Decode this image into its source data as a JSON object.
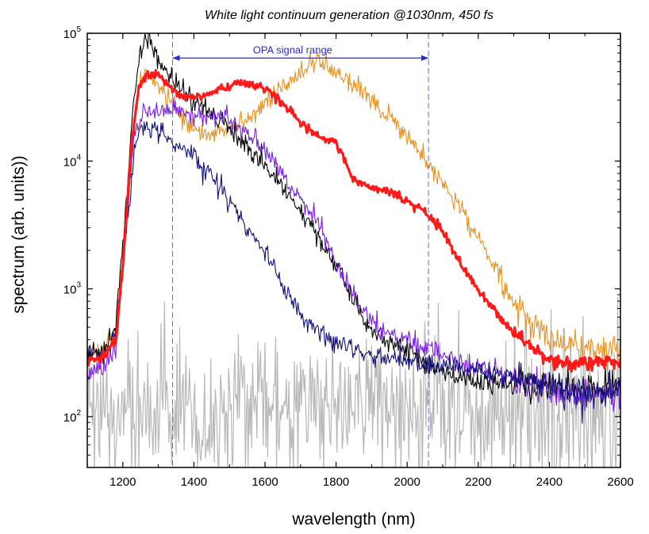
{
  "chart_data": {
    "type": "line",
    "title": "White light continuum generation @1030nm, 450 fs",
    "xlabel": "wavelength (nm)",
    "ylabel": "spectrum (arb. units))",
    "xlim": [
      1100,
      2600
    ],
    "ylim": [
      40,
      100000
    ],
    "yscale": "log",
    "x_ticks": [
      1200,
      1400,
      1600,
      1800,
      2000,
      2200,
      2400,
      2600
    ],
    "x_tick_labels": [
      "1200",
      "1400",
      "1600",
      "1800",
      "2000",
      "2200",
      "2400",
      "2600"
    ],
    "y_ticks": [
      {
        "value": 100,
        "base": "10",
        "exp": "2"
      },
      {
        "value": 1000,
        "base": "10",
        "exp": "3"
      },
      {
        "value": 10000,
        "base": "10",
        "exp": "4"
      },
      {
        "value": 100000,
        "base": "10",
        "exp": "5"
      }
    ],
    "grid": false,
    "annotation": {
      "label": "OPA signal range",
      "x_start": 1340,
      "x_end": 2060,
      "arrow_y": 64000,
      "color": "#2a2ad6"
    },
    "series": [
      {
        "name": "gray baseline",
        "color": "#b8b8b8",
        "width": 1.2,
        "noise": 0.55,
        "seed": 1,
        "points": [
          [
            1100,
            110
          ],
          [
            1200,
            118
          ],
          [
            1400,
            115
          ],
          [
            1600,
            120
          ],
          [
            1800,
            118
          ],
          [
            2000,
            114
          ],
          [
            2200,
            108
          ],
          [
            2400,
            106
          ],
          [
            2600,
            102
          ]
        ]
      },
      {
        "name": "orange",
        "color": "#e8921e",
        "width": 1.1,
        "noise": 0.08,
        "seed": 2,
        "points": [
          [
            1100,
            320
          ],
          [
            1150,
            330
          ],
          [
            1180,
            450
          ],
          [
            1210,
            3000
          ],
          [
            1230,
            18000
          ],
          [
            1245,
            42000
          ],
          [
            1270,
            48000
          ],
          [
            1300,
            38000
          ],
          [
            1350,
            26000
          ],
          [
            1400,
            18000
          ],
          [
            1450,
            16000
          ],
          [
            1500,
            18000
          ],
          [
            1550,
            22000
          ],
          [
            1600,
            28000
          ],
          [
            1650,
            38000
          ],
          [
            1700,
            48000
          ],
          [
            1750,
            60000
          ],
          [
            1780,
            52000
          ],
          [
            1820,
            45000
          ],
          [
            1860,
            38000
          ],
          [
            1900,
            30000
          ],
          [
            1950,
            22000
          ],
          [
            2000,
            15000
          ],
          [
            2050,
            10500
          ],
          [
            2100,
            7000
          ],
          [
            2150,
            4200
          ],
          [
            2200,
            2500
          ],
          [
            2250,
            1400
          ],
          [
            2300,
            800
          ],
          [
            2350,
            500
          ],
          [
            2400,
            400
          ],
          [
            2450,
            370
          ],
          [
            2500,
            320
          ],
          [
            2550,
            330
          ],
          [
            2600,
            340
          ]
        ]
      },
      {
        "name": "black",
        "color": "#000000",
        "width": 1.1,
        "noise": 0.08,
        "seed": 3,
        "points": [
          [
            1100,
            300
          ],
          [
            1150,
            330
          ],
          [
            1180,
            500
          ],
          [
            1210,
            5000
          ],
          [
            1230,
            30000
          ],
          [
            1250,
            75000
          ],
          [
            1270,
            90000
          ],
          [
            1290,
            70000
          ],
          [
            1320,
            50000
          ],
          [
            1360,
            38000
          ],
          [
            1400,
            30000
          ],
          [
            1450,
            24000
          ],
          [
            1500,
            18000
          ],
          [
            1550,
            13000
          ],
          [
            1600,
            9000
          ],
          [
            1650,
            6000
          ],
          [
            1700,
            4000
          ],
          [
            1750,
            2500
          ],
          [
            1800,
            1500
          ],
          [
            1850,
            800
          ],
          [
            1900,
            480
          ],
          [
            1950,
            370
          ],
          [
            2000,
            320
          ],
          [
            2050,
            260
          ],
          [
            2100,
            220
          ],
          [
            2150,
            200
          ],
          [
            2200,
            190
          ],
          [
            2300,
            180
          ],
          [
            2400,
            170
          ],
          [
            2500,
            160
          ],
          [
            2600,
            175
          ]
        ]
      },
      {
        "name": "purple",
        "color": "#7a1ee0",
        "width": 1.1,
        "noise": 0.08,
        "seed": 4,
        "points": [
          [
            1100,
            220
          ],
          [
            1150,
            250
          ],
          [
            1180,
            350
          ],
          [
            1210,
            3000
          ],
          [
            1230,
            15000
          ],
          [
            1260,
            25000
          ],
          [
            1300,
            25000
          ],
          [
            1350,
            24000
          ],
          [
            1400,
            23000
          ],
          [
            1450,
            22000
          ],
          [
            1500,
            21000
          ],
          [
            1550,
            17000
          ],
          [
            1600,
            12000
          ],
          [
            1650,
            8000
          ],
          [
            1700,
            5000
          ],
          [
            1750,
            3200
          ],
          [
            1800,
            1600
          ],
          [
            1850,
            900
          ],
          [
            1900,
            520
          ],
          [
            1950,
            430
          ],
          [
            2000,
            390
          ],
          [
            2050,
            350
          ],
          [
            2100,
            290
          ],
          [
            2200,
            240
          ],
          [
            2300,
            200
          ],
          [
            2400,
            160
          ],
          [
            2500,
            145
          ],
          [
            2600,
            150
          ]
        ]
      },
      {
        "name": "navy",
        "color": "#12127a",
        "width": 1.1,
        "noise": 0.08,
        "seed": 5,
        "points": [
          [
            1100,
            300
          ],
          [
            1150,
            320
          ],
          [
            1180,
            450
          ],
          [
            1210,
            3000
          ],
          [
            1235,
            14000
          ],
          [
            1250,
            19000
          ],
          [
            1300,
            17000
          ],
          [
            1350,
            14000
          ],
          [
            1400,
            11000
          ],
          [
            1450,
            7500
          ],
          [
            1500,
            4800
          ],
          [
            1550,
            3000
          ],
          [
            1600,
            1900
          ],
          [
            1650,
            1100
          ],
          [
            1700,
            650
          ],
          [
            1750,
            460
          ],
          [
            1800,
            390
          ],
          [
            1850,
            340
          ],
          [
            1900,
            300
          ],
          [
            1950,
            285
          ],
          [
            2000,
            270
          ],
          [
            2100,
            250
          ],
          [
            2200,
            230
          ],
          [
            2300,
            210
          ],
          [
            2400,
            170
          ],
          [
            2500,
            140
          ],
          [
            2600,
            170
          ]
        ]
      },
      {
        "name": "red (bold)",
        "color": "#ff1a1a",
        "width": 3.2,
        "noise": 0.035,
        "seed": 6,
        "points": [
          [
            1100,
            280
          ],
          [
            1150,
            290
          ],
          [
            1180,
            400
          ],
          [
            1200,
            1500
          ],
          [
            1225,
            14000
          ],
          [
            1245,
            38000
          ],
          [
            1270,
            48000
          ],
          [
            1300,
            48000
          ],
          [
            1330,
            38000
          ],
          [
            1370,
            31000
          ],
          [
            1420,
            32000
          ],
          [
            1470,
            36000
          ],
          [
            1520,
            40000
          ],
          [
            1570,
            40000
          ],
          [
            1620,
            34000
          ],
          [
            1650,
            28000
          ],
          [
            1700,
            20000
          ],
          [
            1750,
            15500
          ],
          [
            1800,
            14000
          ],
          [
            1850,
            7000
          ],
          [
            1900,
            6200
          ],
          [
            1950,
            5800
          ],
          [
            2000,
            4800
          ],
          [
            2050,
            4000
          ],
          [
            2100,
            2800
          ],
          [
            2150,
            1600
          ],
          [
            2200,
            1000
          ],
          [
            2250,
            650
          ],
          [
            2300,
            450
          ],
          [
            2350,
            350
          ],
          [
            2400,
            280
          ],
          [
            2450,
            260
          ],
          [
            2500,
            260
          ],
          [
            2550,
            265
          ],
          [
            2600,
            270
          ]
        ]
      }
    ]
  }
}
